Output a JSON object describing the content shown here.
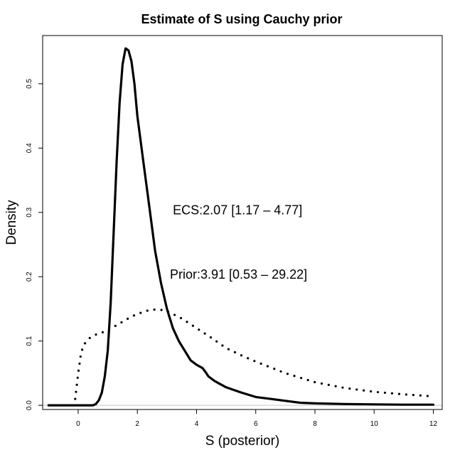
{
  "chart_data": {
    "type": "line",
    "title": "Estimate of S using Cauchy prior",
    "xlabel": "S (posterior)",
    "ylabel": "Density",
    "xlim": [
      -1.2,
      12.3
    ],
    "ylim": [
      -0.0065,
      0.575
    ],
    "xticks": [
      0,
      2,
      4,
      6,
      8,
      10,
      12
    ],
    "yticks": [
      0.0,
      0.1,
      0.2,
      0.3,
      0.4,
      0.5
    ],
    "xtick_labels": [
      "0",
      "2",
      "4",
      "6",
      "8",
      "10",
      "12"
    ],
    "ytick_labels": [
      "0.0",
      "0.1",
      "0.2",
      "0.3",
      "0.4",
      "0.5"
    ],
    "reference_line_y": 0.0,
    "annotations": [
      {
        "text": "ECS:2.07 [1.17 – 4.77]",
        "x": 3.2,
        "y": 0.297
      },
      {
        "text": "Prior:3.91 [0.53 – 29.22]",
        "x": 3.1,
        "y": 0.197
      }
    ],
    "series": [
      {
        "name": "Posterior",
        "style": "solid",
        "x": [
          -1.0,
          0.0,
          0.5,
          0.6,
          0.7,
          0.8,
          0.9,
          1.0,
          1.1,
          1.2,
          1.3,
          1.4,
          1.5,
          1.6,
          1.7,
          1.8,
          1.9,
          2.0,
          2.2,
          2.4,
          2.6,
          2.8,
          3.0,
          3.2,
          3.4,
          3.6,
          3.8,
          4.0,
          4.2,
          4.3,
          4.4,
          4.6,
          4.8,
          5.0,
          5.5,
          6.0,
          6.5,
          7.0,
          7.5,
          8.0,
          9.0,
          10.0,
          11.0,
          12.0
        ],
        "values": [
          0.0,
          0.0,
          0.0,
          0.002,
          0.008,
          0.02,
          0.045,
          0.085,
          0.16,
          0.27,
          0.38,
          0.47,
          0.53,
          0.555,
          0.552,
          0.535,
          0.5,
          0.45,
          0.38,
          0.31,
          0.24,
          0.19,
          0.15,
          0.12,
          0.1,
          0.085,
          0.07,
          0.063,
          0.058,
          0.052,
          0.045,
          0.038,
          0.033,
          0.028,
          0.02,
          0.013,
          0.01,
          0.007,
          0.004,
          0.003,
          0.002,
          0.0015,
          0.001,
          0.001
        ]
      },
      {
        "name": "Prior",
        "style": "dotted",
        "x": [
          -0.1,
          0.0,
          0.1,
          0.2,
          0.4,
          0.6,
          0.8,
          1.0,
          1.2,
          1.5,
          1.8,
          2.0,
          2.3,
          2.6,
          2.9,
          3.2,
          3.5,
          4.0,
          4.5,
          5.0,
          5.5,
          6.0,
          7.0,
          8.0,
          9.0,
          10.0,
          11.0,
          12.0
        ],
        "values": [
          0.01,
          0.05,
          0.082,
          0.095,
          0.105,
          0.11,
          0.113,
          0.117,
          0.122,
          0.13,
          0.138,
          0.142,
          0.147,
          0.149,
          0.148,
          0.142,
          0.135,
          0.12,
          0.105,
          0.089,
          0.078,
          0.068,
          0.05,
          0.036,
          0.027,
          0.021,
          0.017,
          0.014
        ]
      }
    ]
  }
}
